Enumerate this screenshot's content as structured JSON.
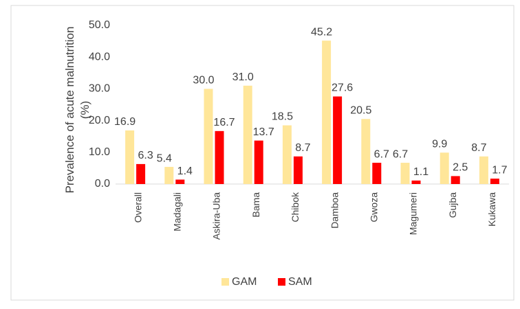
{
  "chart_data": {
    "type": "bar",
    "ylabel": "Prevalence of acute malnutrition (%)",
    "categories": [
      "Overall",
      "Madagali",
      "Askira-Uba",
      "Bama",
      "Chibok",
      "Damboa",
      "Gwoza",
      "Magumeri",
      "Gujba",
      "Kukawa"
    ],
    "series": [
      {
        "name": "GAM",
        "color": "#FFE699",
        "values": [
          16.9,
          5.4,
          30.0,
          31.0,
          18.5,
          45.2,
          20.5,
          6.7,
          9.9,
          8.7
        ],
        "value_labels": [
          "16.9",
          "5.4",
          "30.0",
          "31.0",
          "18.5",
          "45.2",
          "20.5",
          "6.7",
          "9.9",
          "8.7"
        ]
      },
      {
        "name": "SAM",
        "color": "#FF0000",
        "values": [
          6.3,
          1.4,
          16.7,
          13.7,
          8.7,
          27.6,
          6.7,
          1.1,
          2.5,
          1.7
        ],
        "value_labels": [
          "6.3",
          "1.4",
          "16.7",
          "13.7",
          "8.7",
          "27.6",
          "6.7",
          "1.1",
          "2.5",
          "1.7"
        ]
      }
    ],
    "ylim": [
      0,
      50
    ],
    "yticks": [
      {
        "value": 0,
        "label": "0.0"
      },
      {
        "value": 10,
        "label": "10.0"
      },
      {
        "value": 20,
        "label": "20.0"
      },
      {
        "value": 30,
        "label": "30.0"
      },
      {
        "value": 40,
        "label": "40.0"
      },
      {
        "value": 50,
        "label": "50.0"
      }
    ],
    "grid": false,
    "legend": "bottom"
  }
}
